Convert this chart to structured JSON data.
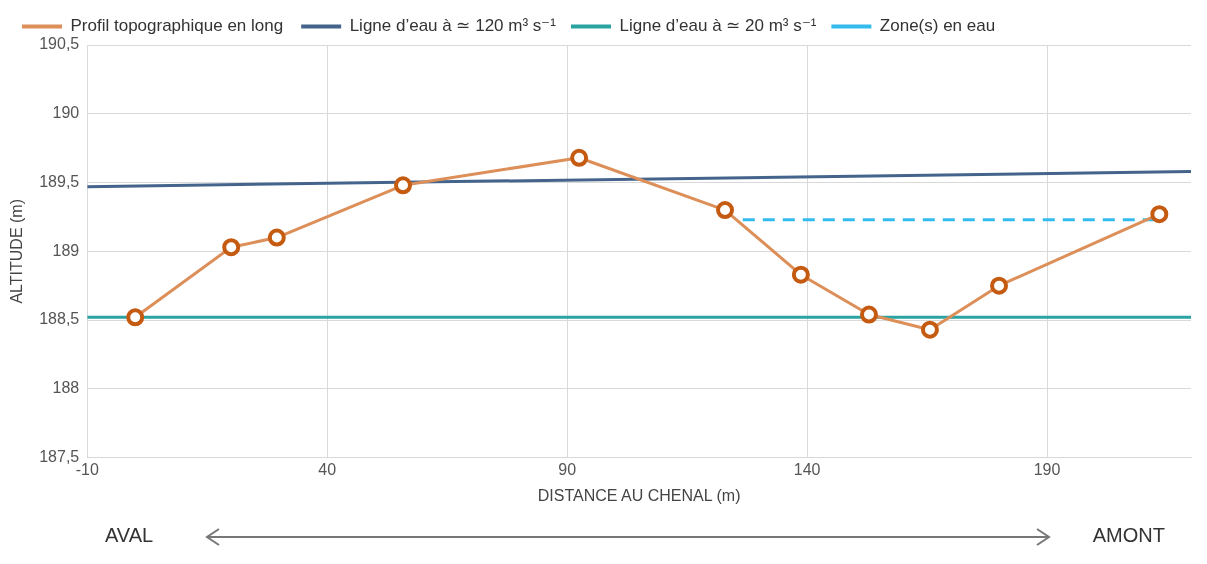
{
  "chart_data": {
    "type": "line",
    "xlabel": "DISTANCE AU CHENAL (m)",
    "ylabel": "ALTITUDE (m)",
    "xlim": [
      -10,
      220
    ],
    "xticks": [
      -10,
      40,
      90,
      140,
      190
    ],
    "ylim": [
      187.5,
      190.5
    ],
    "yticks": [
      {
        "value": 187.5,
        "label": "187,5"
      },
      {
        "value": 188,
        "label": "188"
      },
      {
        "value": 188.5,
        "label": "188,5"
      },
      {
        "value": 189,
        "label": "189"
      },
      {
        "value": 189.5,
        "label": "189,5"
      },
      {
        "value": 190,
        "label": "190"
      },
      {
        "value": 190.5,
        "label": "190,5"
      }
    ],
    "grid": true,
    "legend": "top",
    "series": [
      {
        "name": "Profil topographique en long",
        "color": "#dd8f59",
        "marker": "circle",
        "x": [
          0,
          20,
          29.5,
          55.8,
          92.5,
          122.9,
          138.7,
          152.9,
          165.6,
          180,
          213.4
        ],
        "values": [
          188.52,
          189.03,
          189.1,
          189.48,
          189.68,
          189.3,
          188.83,
          188.54,
          188.43,
          188.75,
          189.27
        ]
      },
      {
        "name": "Ligne d’eau à ≃ 120 m³ s⁻¹",
        "color": "#44648c",
        "marker": "none",
        "x": [
          -10,
          220
        ],
        "values": [
          189.47,
          189.58
        ]
      },
      {
        "name": "Ligne d’eau à ≃ 20 m³ s⁻¹",
        "color": "#2ba3a3",
        "marker": "none",
        "x": [
          -10,
          220
        ],
        "values": [
          188.52,
          188.52
        ]
      },
      {
        "name": "Zone(s) en eau",
        "color": "#33bbee",
        "marker": "none",
        "line_style": "dashed",
        "x": [
          126.6,
          213.4
        ],
        "values": [
          189.23,
          189.23
        ]
      }
    ],
    "annotations": [
      "AVAL",
      "AMONT"
    ]
  }
}
